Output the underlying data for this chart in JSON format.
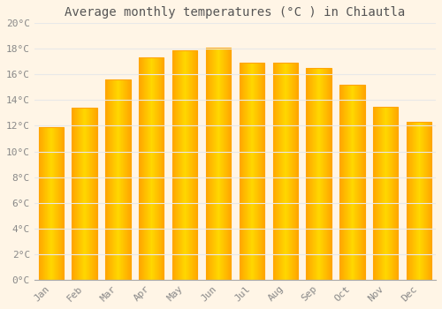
{
  "title": "Average monthly temperatures (°C ) in Chiautla",
  "months": [
    "Jan",
    "Feb",
    "Mar",
    "Apr",
    "May",
    "Jun",
    "Jul",
    "Aug",
    "Sep",
    "Oct",
    "Nov",
    "Dec"
  ],
  "values": [
    11.9,
    13.4,
    15.6,
    17.3,
    17.9,
    18.1,
    16.9,
    16.9,
    16.5,
    15.2,
    13.5,
    12.3
  ],
  "bar_color_center": "#FFD700",
  "bar_color_edge": "#FFA500",
  "background_color": "#FFF5E6",
  "plot_bg_color": "#FFF5E6",
  "grid_color": "#E8E8E8",
  "text_color": "#888888",
  "title_color": "#555555",
  "ylim": [
    0,
    20
  ],
  "yticks": [
    0,
    2,
    4,
    6,
    8,
    10,
    12,
    14,
    16,
    18,
    20
  ],
  "title_fontsize": 10,
  "tick_fontsize": 8,
  "font_family": "monospace",
  "bar_width": 0.75
}
